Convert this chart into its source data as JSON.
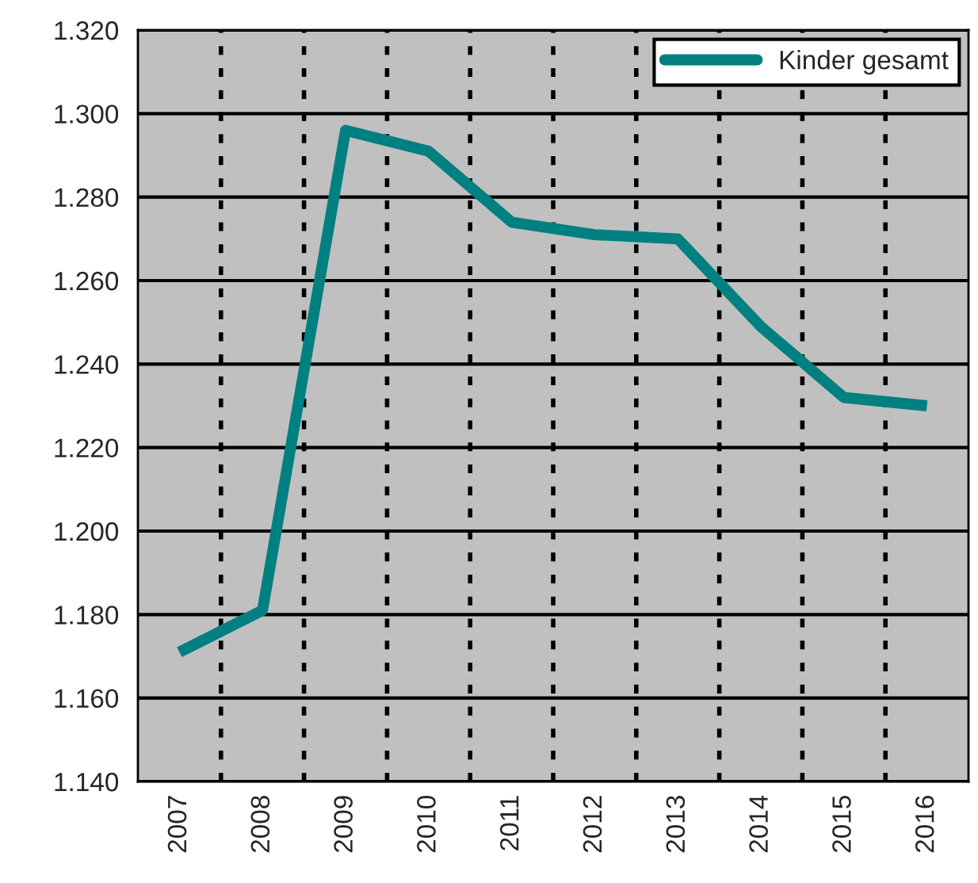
{
  "chart_data": {
    "type": "line",
    "categories": [
      "2007",
      "2008",
      "2009",
      "2010",
      "2011",
      "2012",
      "2013",
      "2014",
      "2015",
      "2016"
    ],
    "series": [
      {
        "name": "Kinder gesamt",
        "color": "#008080",
        "values": [
          1.171,
          1.181,
          1.296,
          1.291,
          1.274,
          1.271,
          1.27,
          1.249,
          1.232,
          1.23
        ]
      }
    ],
    "ylim": [
      1.14,
      1.32
    ],
    "yticks": [
      {
        "value": 1.14,
        "label": "1.140"
      },
      {
        "value": 1.16,
        "label": "1.160"
      },
      {
        "value": 1.18,
        "label": "1.180"
      },
      {
        "value": 1.2,
        "label": "1.200"
      },
      {
        "value": 1.22,
        "label": "1.220"
      },
      {
        "value": 1.24,
        "label": "1.240"
      },
      {
        "value": 1.26,
        "label": "1.260"
      },
      {
        "value": 1.28,
        "label": "1.280"
      },
      {
        "value": 1.3,
        "label": "1.300"
      },
      {
        "value": 1.32,
        "label": "1.320"
      }
    ],
    "grid": true,
    "legend": "top right",
    "line_style": "solid",
    "marker": "none"
  }
}
